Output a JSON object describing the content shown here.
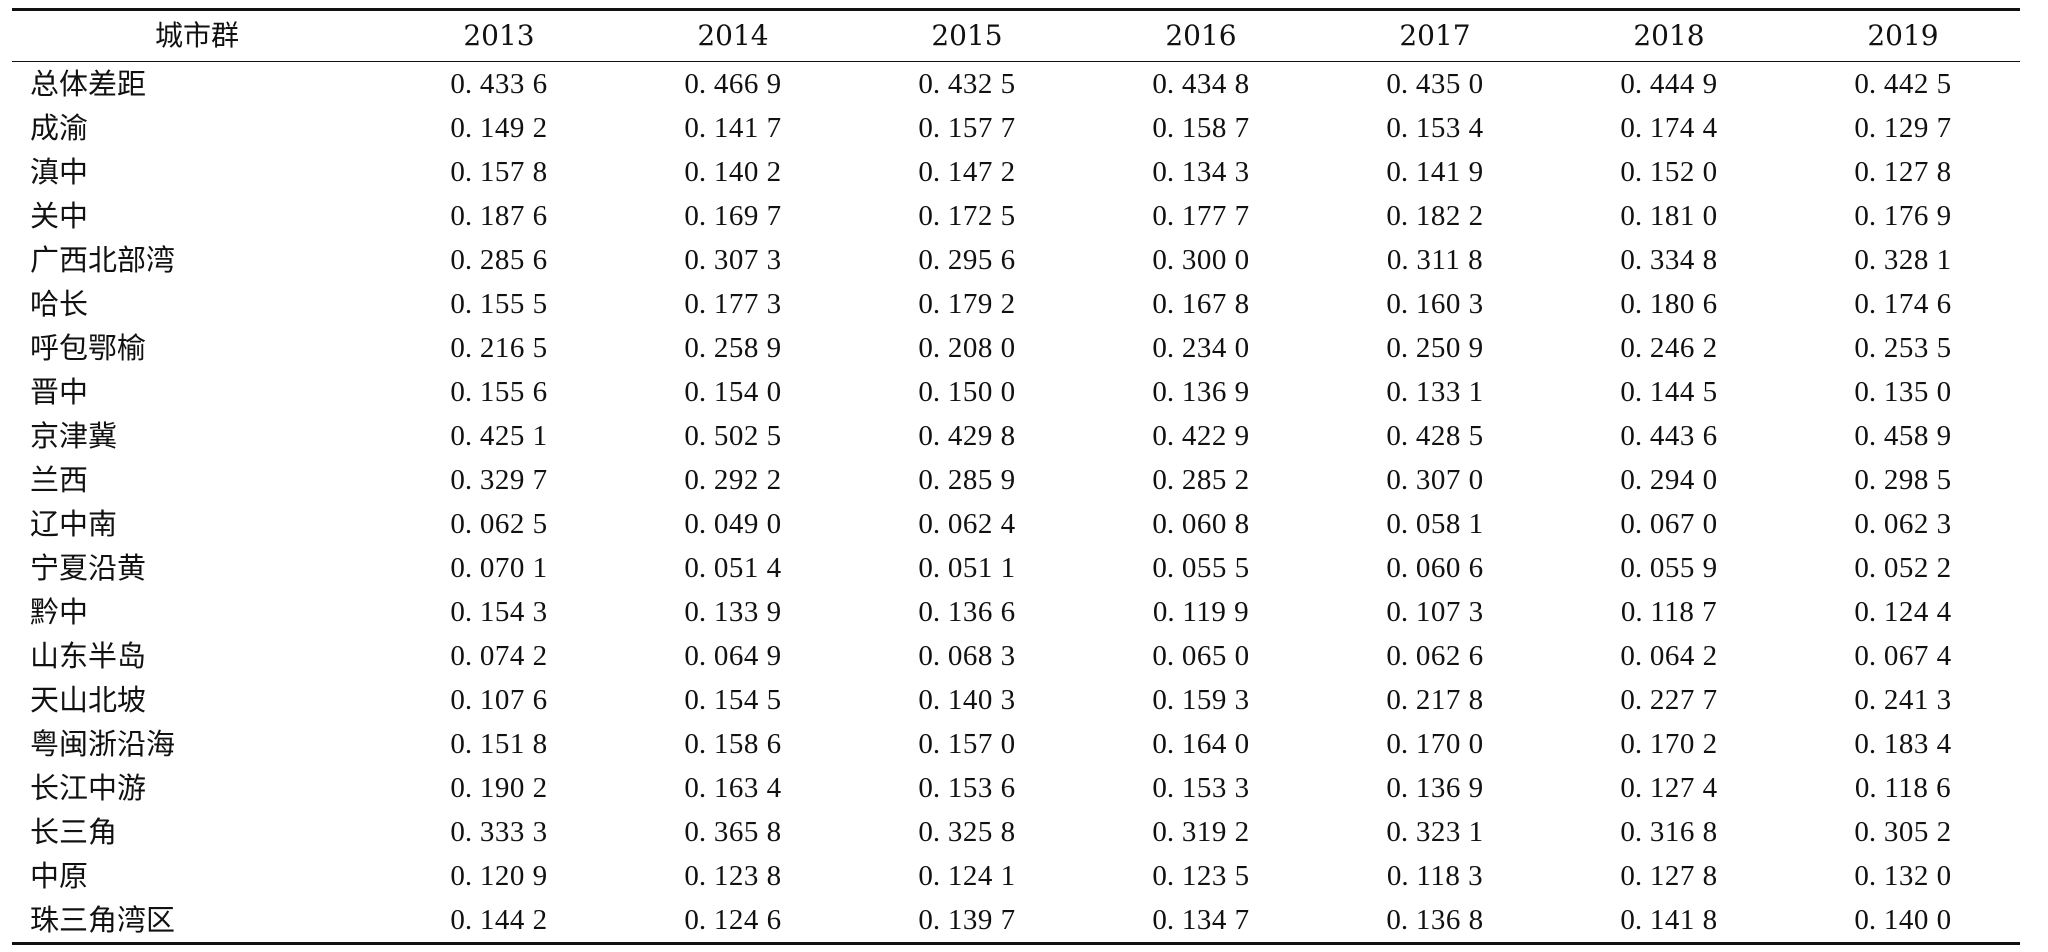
{
  "table": {
    "corner_header": "城市群",
    "years": [
      "2013",
      "2014",
      "2015",
      "2016",
      "2017",
      "2018",
      "2019"
    ],
    "rows": [
      {
        "name": "总体差距",
        "values": [
          "0. 433 6",
          "0. 466 9",
          "0. 432 5",
          "0. 434 8",
          "0. 435 0",
          "0. 444 9",
          "0. 442 5"
        ]
      },
      {
        "name": "成渝",
        "values": [
          "0. 149 2",
          "0. 141 7",
          "0. 157 7",
          "0. 158 7",
          "0. 153 4",
          "0. 174 4",
          "0. 129 7"
        ]
      },
      {
        "name": "滇中",
        "values": [
          "0. 157 8",
          "0. 140 2",
          "0. 147 2",
          "0. 134 3",
          "0. 141 9",
          "0. 152 0",
          "0. 127 8"
        ]
      },
      {
        "name": "关中",
        "values": [
          "0. 187 6",
          "0. 169 7",
          "0. 172 5",
          "0. 177 7",
          "0. 182 2",
          "0. 181 0",
          "0. 176 9"
        ]
      },
      {
        "name": "广西北部湾",
        "values": [
          "0. 285 6",
          "0. 307 3",
          "0. 295 6",
          "0. 300 0",
          "0. 311 8",
          "0. 334 8",
          "0. 328 1"
        ]
      },
      {
        "name": "哈长",
        "values": [
          "0. 155 5",
          "0. 177 3",
          "0. 179 2",
          "0. 167 8",
          "0. 160 3",
          "0. 180 6",
          "0. 174 6"
        ]
      },
      {
        "name": "呼包鄂榆",
        "values": [
          "0. 216 5",
          "0. 258 9",
          "0. 208 0",
          "0. 234 0",
          "0. 250 9",
          "0. 246 2",
          "0. 253 5"
        ]
      },
      {
        "name": "晋中",
        "values": [
          "0. 155 6",
          "0. 154 0",
          "0. 150 0",
          "0. 136 9",
          "0. 133 1",
          "0. 144 5",
          "0. 135 0"
        ]
      },
      {
        "name": "京津冀",
        "values": [
          "0. 425 1",
          "0. 502 5",
          "0. 429 8",
          "0. 422 9",
          "0. 428 5",
          "0. 443 6",
          "0. 458 9"
        ]
      },
      {
        "name": "兰西",
        "values": [
          "0. 329 7",
          "0. 292 2",
          "0. 285 9",
          "0. 285 2",
          "0. 307 0",
          "0. 294 0",
          "0. 298 5"
        ]
      },
      {
        "name": "辽中南",
        "values": [
          "0. 062 5",
          "0. 049 0",
          "0. 062 4",
          "0. 060 8",
          "0. 058 1",
          "0. 067 0",
          "0. 062 3"
        ]
      },
      {
        "name": "宁夏沿黄",
        "values": [
          "0. 070 1",
          "0. 051 4",
          "0. 051 1",
          "0. 055 5",
          "0. 060 6",
          "0. 055 9",
          "0. 052 2"
        ]
      },
      {
        "name": "黔中",
        "values": [
          "0. 154 3",
          "0. 133 9",
          "0. 136 6",
          "0. 119 9",
          "0. 107 3",
          "0. 118 7",
          "0. 124 4"
        ]
      },
      {
        "name": "山东半岛",
        "values": [
          "0. 074 2",
          "0. 064 9",
          "0. 068 3",
          "0. 065 0",
          "0. 062 6",
          "0. 064 2",
          "0. 067 4"
        ]
      },
      {
        "name": "天山北坡",
        "values": [
          "0. 107 6",
          "0. 154 5",
          "0. 140 3",
          "0. 159 3",
          "0. 217 8",
          "0. 227 7",
          "0. 241 3"
        ]
      },
      {
        "name": "粤闽浙沿海",
        "values": [
          "0. 151 8",
          "0. 158 6",
          "0. 157 0",
          "0. 164 0",
          "0. 170 0",
          "0. 170 2",
          "0. 183 4"
        ]
      },
      {
        "name": "长江中游",
        "values": [
          "0. 190 2",
          "0. 163 4",
          "0. 153 6",
          "0. 153 3",
          "0. 136 9",
          "0. 127 4",
          "0. 118 6"
        ]
      },
      {
        "name": "长三角",
        "values": [
          "0. 333 3",
          "0. 365 8",
          "0. 325 8",
          "0. 319 2",
          "0. 323 1",
          "0. 316 8",
          "0. 305 2"
        ]
      },
      {
        "name": "中原",
        "values": [
          "0. 120 9",
          "0. 123 8",
          "0. 124 1",
          "0. 123 5",
          "0. 118 3",
          "0. 127 8",
          "0. 132 0"
        ]
      },
      {
        "name": "珠三角湾区",
        "values": [
          "0. 144 2",
          "0. 124 6",
          "0. 139 7",
          "0. 134 7",
          "0. 136 8",
          "0. 141 8",
          "0. 140 0"
        ]
      }
    ]
  }
}
